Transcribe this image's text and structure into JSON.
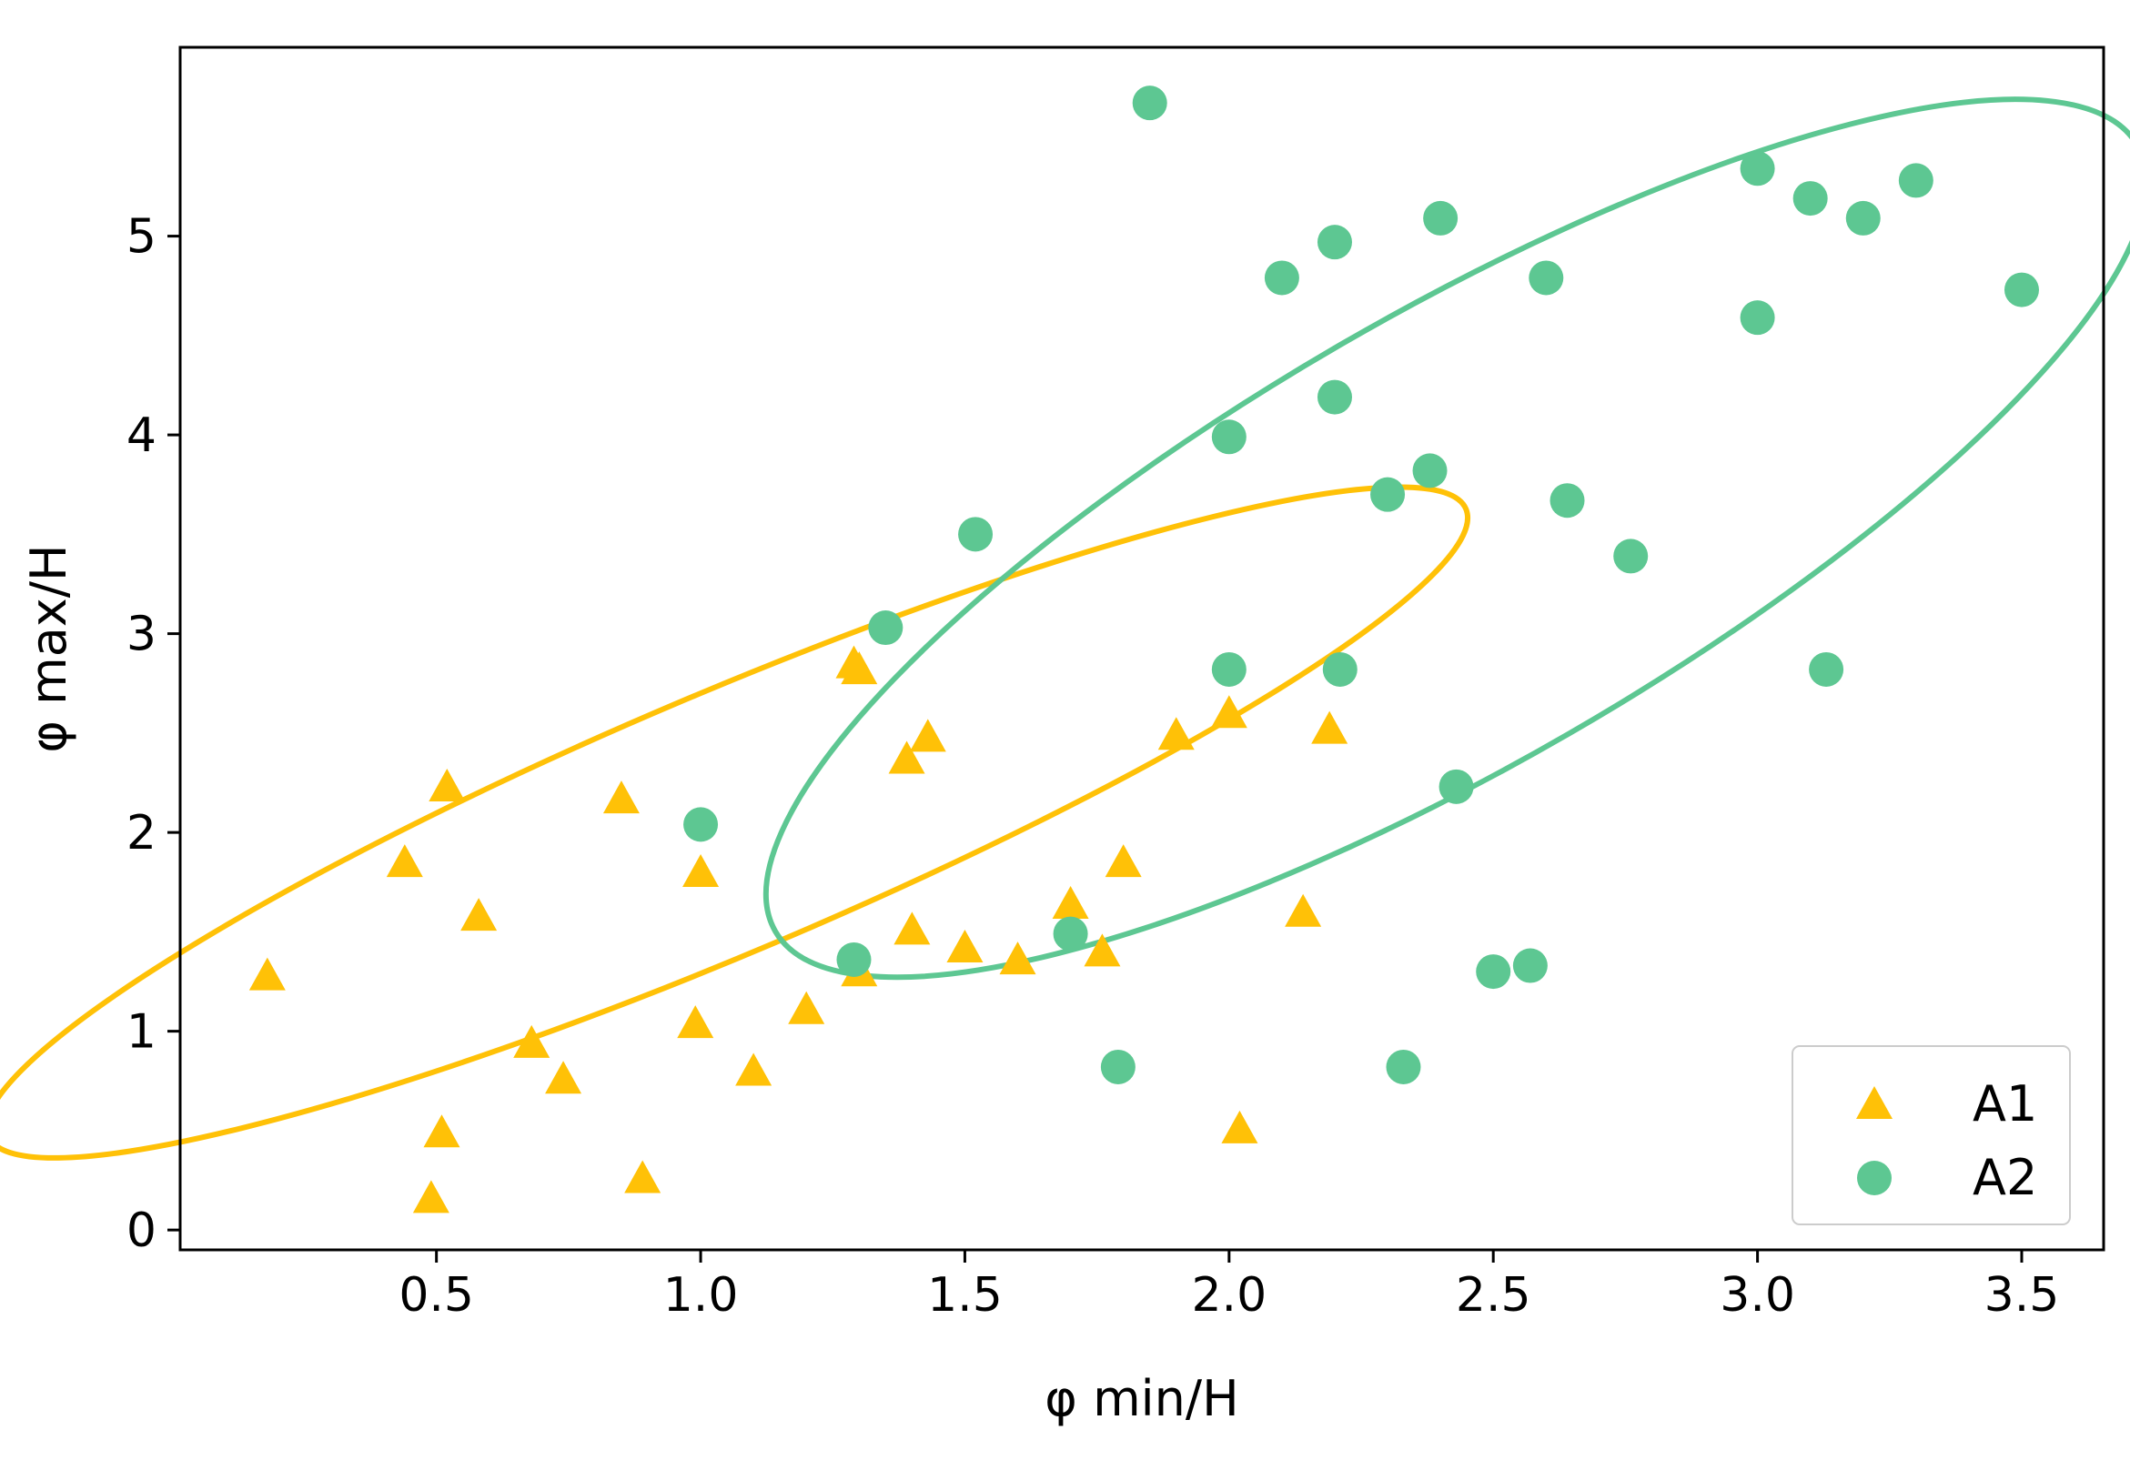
{
  "chart_data": {
    "type": "scatter",
    "title": "",
    "xlabel": "φ min/H",
    "ylabel": "φ max/H",
    "xlim": [
      0.015,
      3.655
    ],
    "ylim": [
      -0.1,
      5.95
    ],
    "grid": false,
    "legend_position": "bottom-right",
    "xticks": [
      0.5,
      1.0,
      1.5,
      2.0,
      2.5,
      3.0,
      3.5
    ],
    "xtick_labels": [
      "0.5",
      "1.0",
      "1.5",
      "2.0",
      "2.5",
      "3.0",
      "3.5"
    ],
    "yticks": [
      0,
      1,
      2,
      3,
      4,
      5
    ],
    "ytick_labels": [
      "0",
      "1",
      "2",
      "3",
      "4",
      "5"
    ],
    "series": [
      {
        "name": "A1",
        "marker": "triangle",
        "color": "#FFC107",
        "points": [
          [
            0.18,
            1.27
          ],
          [
            0.44,
            1.84
          ],
          [
            0.49,
            0.15
          ],
          [
            0.51,
            0.48
          ],
          [
            0.52,
            2.22
          ],
          [
            0.58,
            1.57
          ],
          [
            0.68,
            0.93
          ],
          [
            0.74,
            0.75
          ],
          [
            0.85,
            2.16
          ],
          [
            0.89,
            0.25
          ],
          [
            0.99,
            1.03
          ],
          [
            1.0,
            1.79
          ],
          [
            1.1,
            0.79
          ],
          [
            1.2,
            1.1
          ],
          [
            1.29,
            2.84
          ],
          [
            1.3,
            2.81
          ],
          [
            1.3,
            1.29
          ],
          [
            1.39,
            2.36
          ],
          [
            1.4,
            1.5
          ],
          [
            1.43,
            2.47
          ],
          [
            1.5,
            1.41
          ],
          [
            1.6,
            1.35
          ],
          [
            1.7,
            1.63
          ],
          [
            1.76,
            1.39
          ],
          [
            1.8,
            1.84
          ],
          [
            1.9,
            2.48
          ],
          [
            2.0,
            2.59
          ],
          [
            2.02,
            0.5
          ],
          [
            2.14,
            1.59
          ],
          [
            2.19,
            2.51
          ]
        ]
      },
      {
        "name": "A2",
        "marker": "circle",
        "color": "#5DC792",
        "points": [
          [
            1.0,
            2.04
          ],
          [
            1.29,
            1.36
          ],
          [
            1.35,
            3.03
          ],
          [
            1.52,
            3.5
          ],
          [
            1.7,
            1.49
          ],
          [
            1.79,
            0.82
          ],
          [
            1.85,
            5.67
          ],
          [
            2.0,
            3.99
          ],
          [
            2.0,
            2.82
          ],
          [
            2.1,
            4.79
          ],
          [
            2.2,
            4.97
          ],
          [
            2.2,
            4.19
          ],
          [
            2.21,
            2.82
          ],
          [
            2.3,
            3.7
          ],
          [
            2.33,
            0.82
          ],
          [
            2.38,
            3.82
          ],
          [
            2.4,
            5.09
          ],
          [
            2.43,
            2.23
          ],
          [
            2.5,
            1.3
          ],
          [
            2.57,
            1.33
          ],
          [
            2.6,
            4.79
          ],
          [
            2.64,
            3.67
          ],
          [
            2.76,
            3.39
          ],
          [
            3.0,
            5.34
          ],
          [
            3.0,
            4.59
          ],
          [
            3.1,
            5.19
          ],
          [
            3.13,
            2.82
          ],
          [
            3.2,
            5.09
          ],
          [
            3.3,
            5.28
          ],
          [
            3.5,
            4.73
          ]
        ]
      }
    ],
    "annotations": [
      {
        "type": "ellipse",
        "group": "A1",
        "color": "#FFC107",
        "center": [
          1.05,
          2.05
        ],
        "semi_axes": [
          0.98,
          1.05
        ],
        "rotation_deg": 23
      },
      {
        "type": "ellipse",
        "group": "A2",
        "color": "#5DC792",
        "center": [
          2.43,
          3.48
        ],
        "semi_axes": [
          0.96,
          1.83
        ],
        "rotation_deg": 30
      }
    ]
  }
}
